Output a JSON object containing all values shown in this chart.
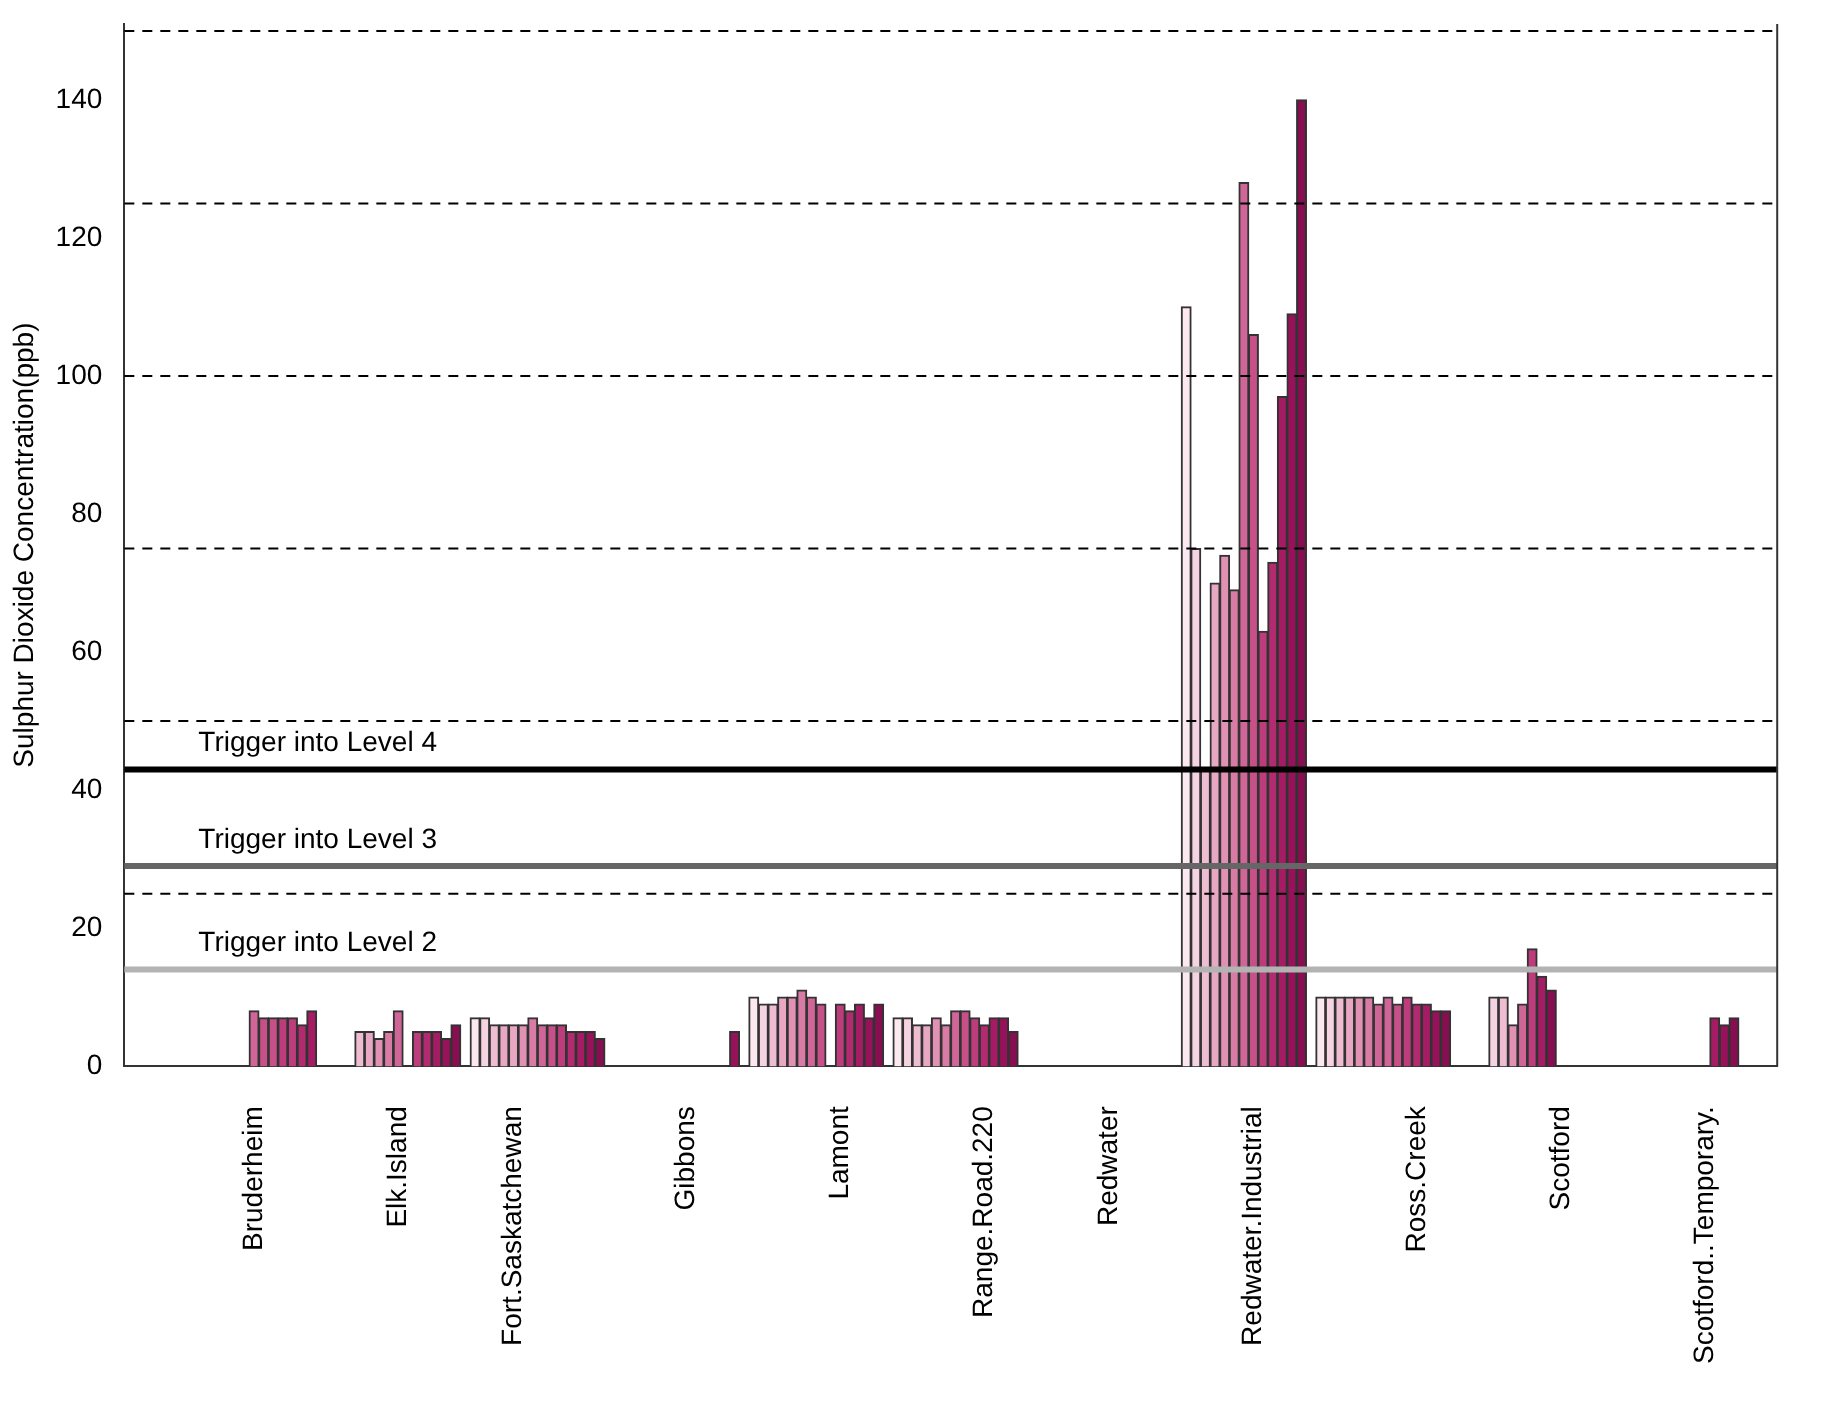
{
  "chart_data": {
    "type": "bar",
    "ylabel": "Sulphur Dioxide Concentration(ppb)",
    "categories": [
      null,
      null,
      null,
      null,
      null,
      null,
      null,
      null,
      null,
      null,
      null,
      null,
      null,
      "Bruderheim",
      null,
      null,
      null,
      null,
      null,
      null,
      null,
      null,
      null,
      null,
      null,
      null,
      null,
      null,
      "Elk.Island",
      null,
      null,
      null,
      null,
      null,
      null,
      null,
      null,
      null,
      null,
      null,
      "Fort.Saskatchewan",
      null,
      null,
      null,
      null,
      null,
      null,
      null,
      null,
      null,
      null,
      null,
      null,
      null,
      null,
      null,
      null,
      null,
      "Gibbons",
      null,
      null,
      null,
      null,
      null,
      null,
      null,
      null,
      null,
      null,
      null,
      null,
      null,
      null,
      null,
      "Lamont",
      null,
      null,
      null,
      null,
      null,
      null,
      null,
      null,
      null,
      null,
      null,
      null,
      null,
      null,
      "Range.Road.220",
      null,
      null,
      null,
      null,
      null,
      null,
      null,
      null,
      null,
      null,
      null,
      null,
      "Redwater",
      null,
      null,
      null,
      null,
      null,
      null,
      null,
      null,
      null,
      null,
      null,
      null,
      null,
      null,
      "Redwater.Industrial",
      null,
      null,
      null,
      null,
      null,
      null,
      null,
      null,
      null,
      null,
      null,
      null,
      null,
      null,
      null,
      null,
      "Ross.Creek",
      null,
      null,
      null,
      null,
      null,
      null,
      null,
      null,
      null,
      null,
      null,
      null,
      null,
      null,
      "Scotford",
      null,
      null,
      null,
      null,
      null,
      null,
      null,
      null,
      null,
      null,
      null,
      null,
      null,
      null,
      "Scotford..Temporary.",
      null,
      null,
      null,
      null,
      null,
      null,
      null
    ],
    "values": [
      null,
      null,
      null,
      null,
      null,
      null,
      null,
      null,
      null,
      null,
      null,
      null,
      null,
      8,
      7,
      7,
      7,
      7,
      6,
      8,
      null,
      null,
      null,
      null,
      5,
      5,
      4,
      5,
      8,
      null,
      5,
      5,
      5,
      4,
      6,
      null,
      7,
      7,
      6,
      6,
      6,
      6,
      7,
      6,
      6,
      6,
      5,
      5,
      5,
      4,
      null,
      null,
      null,
      null,
      null,
      null,
      null,
      null,
      null,
      null,
      null,
      null,
      null,
      5,
      null,
      10,
      9,
      9,
      10,
      10,
      11,
      10,
      9,
      null,
      9,
      8,
      9,
      7,
      9,
      null,
      7,
      7,
      6,
      6,
      7,
      6,
      8,
      8,
      7,
      6,
      7,
      7,
      5,
      null,
      null,
      null,
      null,
      null,
      null,
      null,
      null,
      null,
      null,
      null,
      null,
      null,
      null,
      null,
      null,
      null,
      110,
      75,
      43,
      70,
      74,
      69,
      128,
      106,
      63,
      73,
      97,
      109,
      140,
      null,
      10,
      10,
      10,
      10,
      10,
      10,
      9,
      10,
      9,
      10,
      9,
      9,
      8,
      8,
      null,
      null,
      null,
      null,
      10,
      10,
      6,
      9,
      17,
      13,
      11,
      null,
      null,
      null,
      null,
      null,
      null,
      null,
      null,
      null,
      null,
      null,
      null,
      null,
      null,
      null,
      null,
      7,
      6,
      7,
      null,
      null,
      null,
      null
    ],
    "colors": [
      null,
      null,
      null,
      null,
      null,
      null,
      null,
      null,
      null,
      null,
      null,
      null,
      null,
      "#d06597",
      "#c75089",
      "#c75089",
      "#bd3c7c",
      "#bd3c7c",
      "#b22b70",
      "#a51c65",
      null,
      null,
      null,
      null,
      "#efbdd1",
      "#e8a7c2",
      "#e091b4",
      "#d87ba5",
      "#d06597",
      null,
      "#bd3c7c",
      "#b22b70",
      "#a51c65",
      "#97125b",
      "#880e52",
      null,
      "#fce8ef",
      "#f6d3e0",
      "#efbdd1",
      "#e8a7c2",
      "#e8a7c2",
      "#e091b4",
      "#d87ba5",
      "#d06597",
      "#c75089",
      "#bd3c7c",
      "#b22b70",
      "#a51c65",
      "#97125b",
      "#880e52",
      null,
      null,
      null,
      null,
      null,
      null,
      null,
      null,
      null,
      null,
      null,
      null,
      null,
      "#97125b",
      null,
      "#fce8ef",
      "#f6d3e0",
      "#efbdd1",
      "#e8a7c2",
      "#e091b4",
      "#d87ba5",
      "#d06597",
      "#c75089",
      null,
      "#bd3c7c",
      "#b22b70",
      "#a51c65",
      "#97125b",
      "#880e52",
      null,
      "#fce8ef",
      "#f6d3e0",
      "#efbdd1",
      "#e8a7c2",
      "#e091b4",
      "#d87ba5",
      "#d06597",
      "#c75089",
      "#bd3c7c",
      "#b22b70",
      "#a51c65",
      "#97125b",
      "#880e52",
      null,
      null,
      null,
      null,
      null,
      null,
      null,
      null,
      null,
      null,
      null,
      null,
      null,
      null,
      null,
      null,
      null,
      "#fce8ef",
      "#f6d3e0",
      "#efbdd1",
      "#e8a7c2",
      "#e091b4",
      "#d87ba5",
      "#d06597",
      "#c75089",
      "#bd3c7c",
      "#b22b70",
      "#a51c65",
      "#97125b",
      "#880e52",
      null,
      "#fce8ef",
      "#f6d3e0",
      "#efbdd1",
      "#e8a7c2",
      "#e091b4",
      "#d87ba5",
      "#d06597",
      "#d06597",
      "#c75089",
      "#bd3c7c",
      "#b22b70",
      "#a51c65",
      "#97125b",
      "#880e52",
      null,
      null,
      null,
      null,
      "#f6d3e0",
      "#efbdd1",
      "#e091b4",
      "#d06597",
      "#bd3c7c",
      "#a51c65",
      "#880e52",
      null,
      null,
      null,
      null,
      null,
      null,
      null,
      null,
      null,
      null,
      null,
      null,
      null,
      null,
      null,
      null,
      "#a51c65",
      "#97125b",
      "#880e52",
      null,
      null,
      null,
      null
    ],
    "ylim": [
      0,
      151
    ],
    "yticks": [
      0,
      20,
      40,
      60,
      80,
      100,
      120,
      140
    ],
    "grid": false,
    "legend": false,
    "ref_lines": [
      {
        "axis": "y",
        "value": 25,
        "label": null,
        "color": "#000000",
        "line_style": "dashed"
      },
      {
        "axis": "y",
        "value": 50,
        "label": null,
        "color": "#000000",
        "line_style": "dashed"
      },
      {
        "axis": "y",
        "value": 75,
        "label": null,
        "color": "#000000",
        "line_style": "dashed"
      },
      {
        "axis": "y",
        "value": 100,
        "label": null,
        "color": "#000000",
        "line_style": "dashed"
      },
      {
        "axis": "y",
        "value": 125,
        "label": null,
        "color": "#000000",
        "line_style": "dashed"
      },
      {
        "axis": "y",
        "value": 150,
        "label": null,
        "color": "#000000",
        "line_style": "dashed"
      },
      {
        "axis": "y",
        "value": 14,
        "label": "Trigger into Level 2",
        "color": "#b3b3b3",
        "line_style": "solid"
      },
      {
        "axis": "y",
        "value": 29,
        "label": "Trigger into Level 3",
        "color": "#666666",
        "line_style": "solid"
      },
      {
        "axis": "y",
        "value": 43,
        "label": "Trigger into Level 4",
        "color": "#000000",
        "line_style": "solid"
      }
    ]
  }
}
